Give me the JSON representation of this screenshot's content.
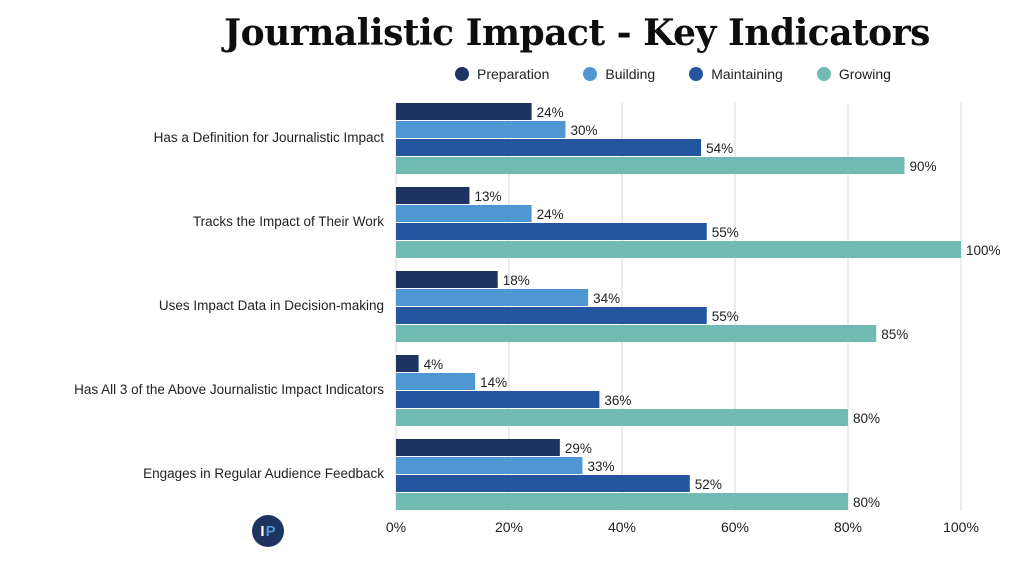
{
  "chart_data": {
    "type": "bar",
    "orientation": "horizontal",
    "title": "Journalistic Impact - Key Indicators",
    "xlabel": "",
    "ylabel": "",
    "xlim": [
      0,
      100
    ],
    "x_ticks": [
      "0%",
      "20%",
      "40%",
      "60%",
      "80%",
      "100%"
    ],
    "grid": true,
    "legend_position": "top",
    "categories": [
      "Has a Definition for Journalistic Impact",
      "Tracks the Impact of Their Work",
      "Uses Impact Data in Decision-making",
      "Has All 3 of the Above Journalistic Impact Indicators",
      "Engages in Regular Audience Feedback"
    ],
    "series": [
      {
        "name": "Preparation",
        "color": "#1d3461",
        "values": [
          24,
          13,
          18,
          4,
          29
        ]
      },
      {
        "name": "Building",
        "color": "#4f97d3",
        "values": [
          30,
          24,
          34,
          14,
          33
        ]
      },
      {
        "name": "Maintaining",
        "color": "#23569f",
        "values": [
          54,
          55,
          55,
          36,
          52
        ]
      },
      {
        "name": "Growing",
        "color": "#72bbb3",
        "values": [
          90,
          100,
          85,
          80,
          80
        ]
      }
    ],
    "value_suffix": "%"
  },
  "logo": {
    "text_left": "I",
    "text_right": "P"
  }
}
